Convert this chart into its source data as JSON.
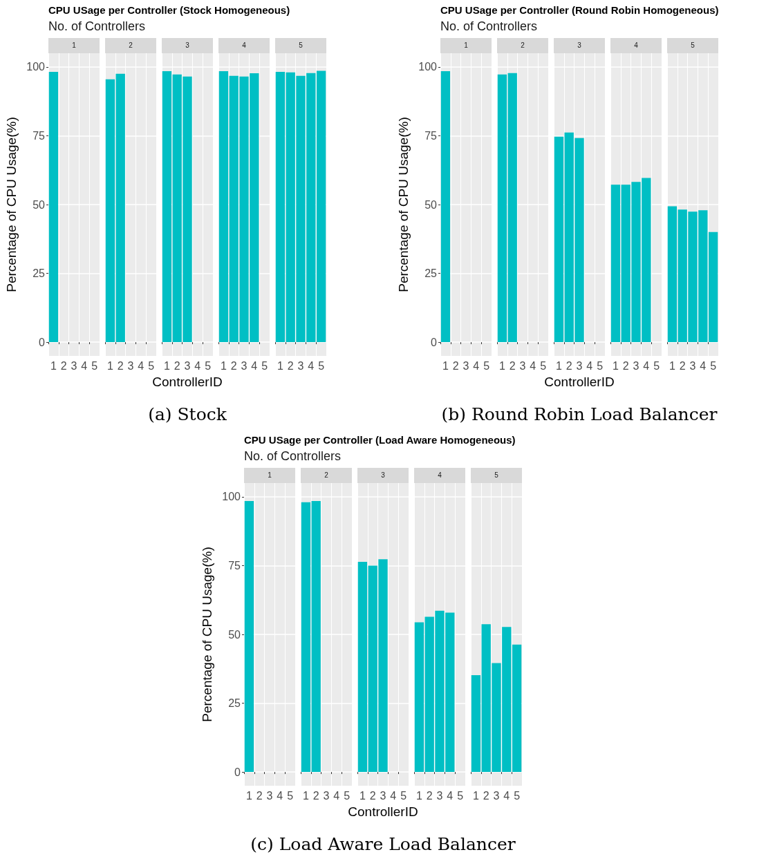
{
  "chart_data": [
    {
      "type": "bar",
      "title": "1",
      "annotations": [
        "CPU USage per Controller (Stock Homogeneous)",
        "No. of Controllers"
      ],
      "ylabel": "Percentage of CPU Usage(%)",
      "categories": [
        "1",
        "2",
        "3",
        "4",
        "5"
      ],
      "values": [
        98.2,
        null,
        null,
        null,
        null
      ],
      "color": "#00bfc4",
      "ylim": [
        -5,
        105
      ],
      "yticks": [
        0,
        25,
        50,
        75,
        100
      ],
      "grid": true
    },
    {
      "type": "bar",
      "title": "2",
      "categories": [
        "1",
        "2",
        "3",
        "4",
        "5"
      ],
      "values": [
        95.5,
        97.5,
        null,
        null,
        null
      ],
      "color": "#00bfc4",
      "ylim": [
        -5,
        105
      ],
      "grid": true,
      "tick_labels": "x"
    },
    {
      "type": "bar",
      "title": "3",
      "xlabel": "ControllerID",
      "annotations": [
        "(a) Stock"
      ],
      "categories": [
        "1",
        "2",
        "3",
        "4",
        "5"
      ],
      "values": [
        98.5,
        97.3,
        96.5,
        null,
        null
      ],
      "color": "#00bfc4",
      "ylim": [
        -5,
        105
      ],
      "grid": true,
      "tick_labels": "x"
    },
    {
      "type": "bar",
      "title": "4",
      "categories": [
        "1",
        "2",
        "3",
        "4",
        "5"
      ],
      "values": [
        98.5,
        96.8,
        96.5,
        97.7,
        null
      ],
      "color": "#00bfc4",
      "ylim": [
        -5,
        105
      ],
      "grid": true,
      "tick_labels": "x"
    },
    {
      "type": "bar",
      "title": "5",
      "categories": [
        "1",
        "2",
        "3",
        "4",
        "5"
      ],
      "values": [
        98.2,
        98,
        96.8,
        97.8,
        98.6
      ],
      "color": "#00bfc4",
      "ylim": [
        -5,
        105
      ],
      "grid": true,
      "tick_labels": "x"
    },
    {
      "type": "bar",
      "title": "1",
      "annotations": [
        "CPU USage per Controller (Round Robin Homogeneous)",
        "No. of Controllers"
      ],
      "ylabel": "Percentage of CPU Usage(%)",
      "categories": [
        "1",
        "2",
        "3",
        "4",
        "5"
      ],
      "values": [
        98.5,
        null,
        null,
        null,
        null
      ],
      "color": "#00bfc4",
      "ylim": [
        -5,
        105
      ],
      "yticks": [
        0,
        25,
        50,
        75,
        100
      ],
      "grid": true
    },
    {
      "type": "bar",
      "title": "2",
      "categories": [
        "1",
        "2",
        "3",
        "4",
        "5"
      ],
      "values": [
        97.3,
        97.8,
        null,
        null,
        null
      ],
      "color": "#00bfc4",
      "ylim": [
        -5,
        105
      ],
      "grid": true,
      "tick_labels": "x"
    },
    {
      "type": "bar",
      "title": "3",
      "xlabel": "ControllerID",
      "annotations": [
        "(b) Round Robin Load Balancer"
      ],
      "categories": [
        "1",
        "2",
        "3",
        "4",
        "5"
      ],
      "values": [
        74.7,
        76.2,
        74.2,
        null,
        null
      ],
      "color": "#00bfc4",
      "ylim": [
        -5,
        105
      ],
      "grid": true,
      "tick_labels": "x"
    },
    {
      "type": "bar",
      "title": "4",
      "categories": [
        "1",
        "2",
        "3",
        "4",
        "5"
      ],
      "values": [
        57.2,
        57.2,
        58.2,
        59.7,
        null
      ],
      "color": "#00bfc4",
      "ylim": [
        -5,
        105
      ],
      "grid": true,
      "tick_labels": "x"
    },
    {
      "type": "bar",
      "title": "5",
      "categories": [
        "1",
        "2",
        "3",
        "4",
        "5"
      ],
      "values": [
        49.4,
        48.2,
        47.4,
        47.9,
        40
      ],
      "color": "#00bfc4",
      "ylim": [
        -5,
        105
      ],
      "grid": true,
      "tick_labels": "x"
    },
    {
      "type": "bar",
      "title": "1",
      "annotations": [
        "CPU USage per Controller (Load Aware Homogeneous)",
        "No. of Controllers"
      ],
      "ylabel": "Percentage of CPU Usage(%)",
      "categories": [
        "1",
        "2",
        "3",
        "4",
        "5"
      ],
      "values": [
        98.5,
        null,
        null,
        null,
        null
      ],
      "color": "#00bfc4",
      "ylim": [
        -5,
        105
      ],
      "yticks": [
        0,
        25,
        50,
        75,
        100
      ],
      "grid": true
    },
    {
      "type": "bar",
      "title": "2",
      "categories": [
        "1",
        "2",
        "3",
        "4",
        "5"
      ],
      "values": [
        98,
        98.5,
        null,
        null,
        null
      ],
      "color": "#00bfc4",
      "ylim": [
        -5,
        105
      ],
      "grid": true,
      "tick_labels": "x"
    },
    {
      "type": "bar",
      "title": "3",
      "xlabel": "ControllerID",
      "annotations": [
        "(c) Load Aware Load Balancer"
      ],
      "categories": [
        "1",
        "2",
        "3",
        "4",
        "5"
      ],
      "values": [
        76.4,
        75,
        77.3,
        null,
        null
      ],
      "color": "#00bfc4",
      "ylim": [
        -5,
        105
      ],
      "grid": true,
      "tick_labels": "x"
    },
    {
      "type": "bar",
      "title": "4",
      "categories": [
        "1",
        "2",
        "3",
        "4",
        "5"
      ],
      "values": [
        54.4,
        56.4,
        58.6,
        57.9,
        null
      ],
      "color": "#00bfc4",
      "ylim": [
        -5,
        105
      ],
      "grid": true,
      "tick_labels": "x"
    },
    {
      "type": "bar",
      "title": "5",
      "categories": [
        "1",
        "2",
        "3",
        "4",
        "5"
      ],
      "values": [
        35.2,
        53.7,
        39.6,
        52.7,
        46.3
      ],
      "color": "#00bfc4",
      "ylim": [
        -5,
        105
      ],
      "grid": true,
      "tick_labels": "x"
    }
  ]
}
